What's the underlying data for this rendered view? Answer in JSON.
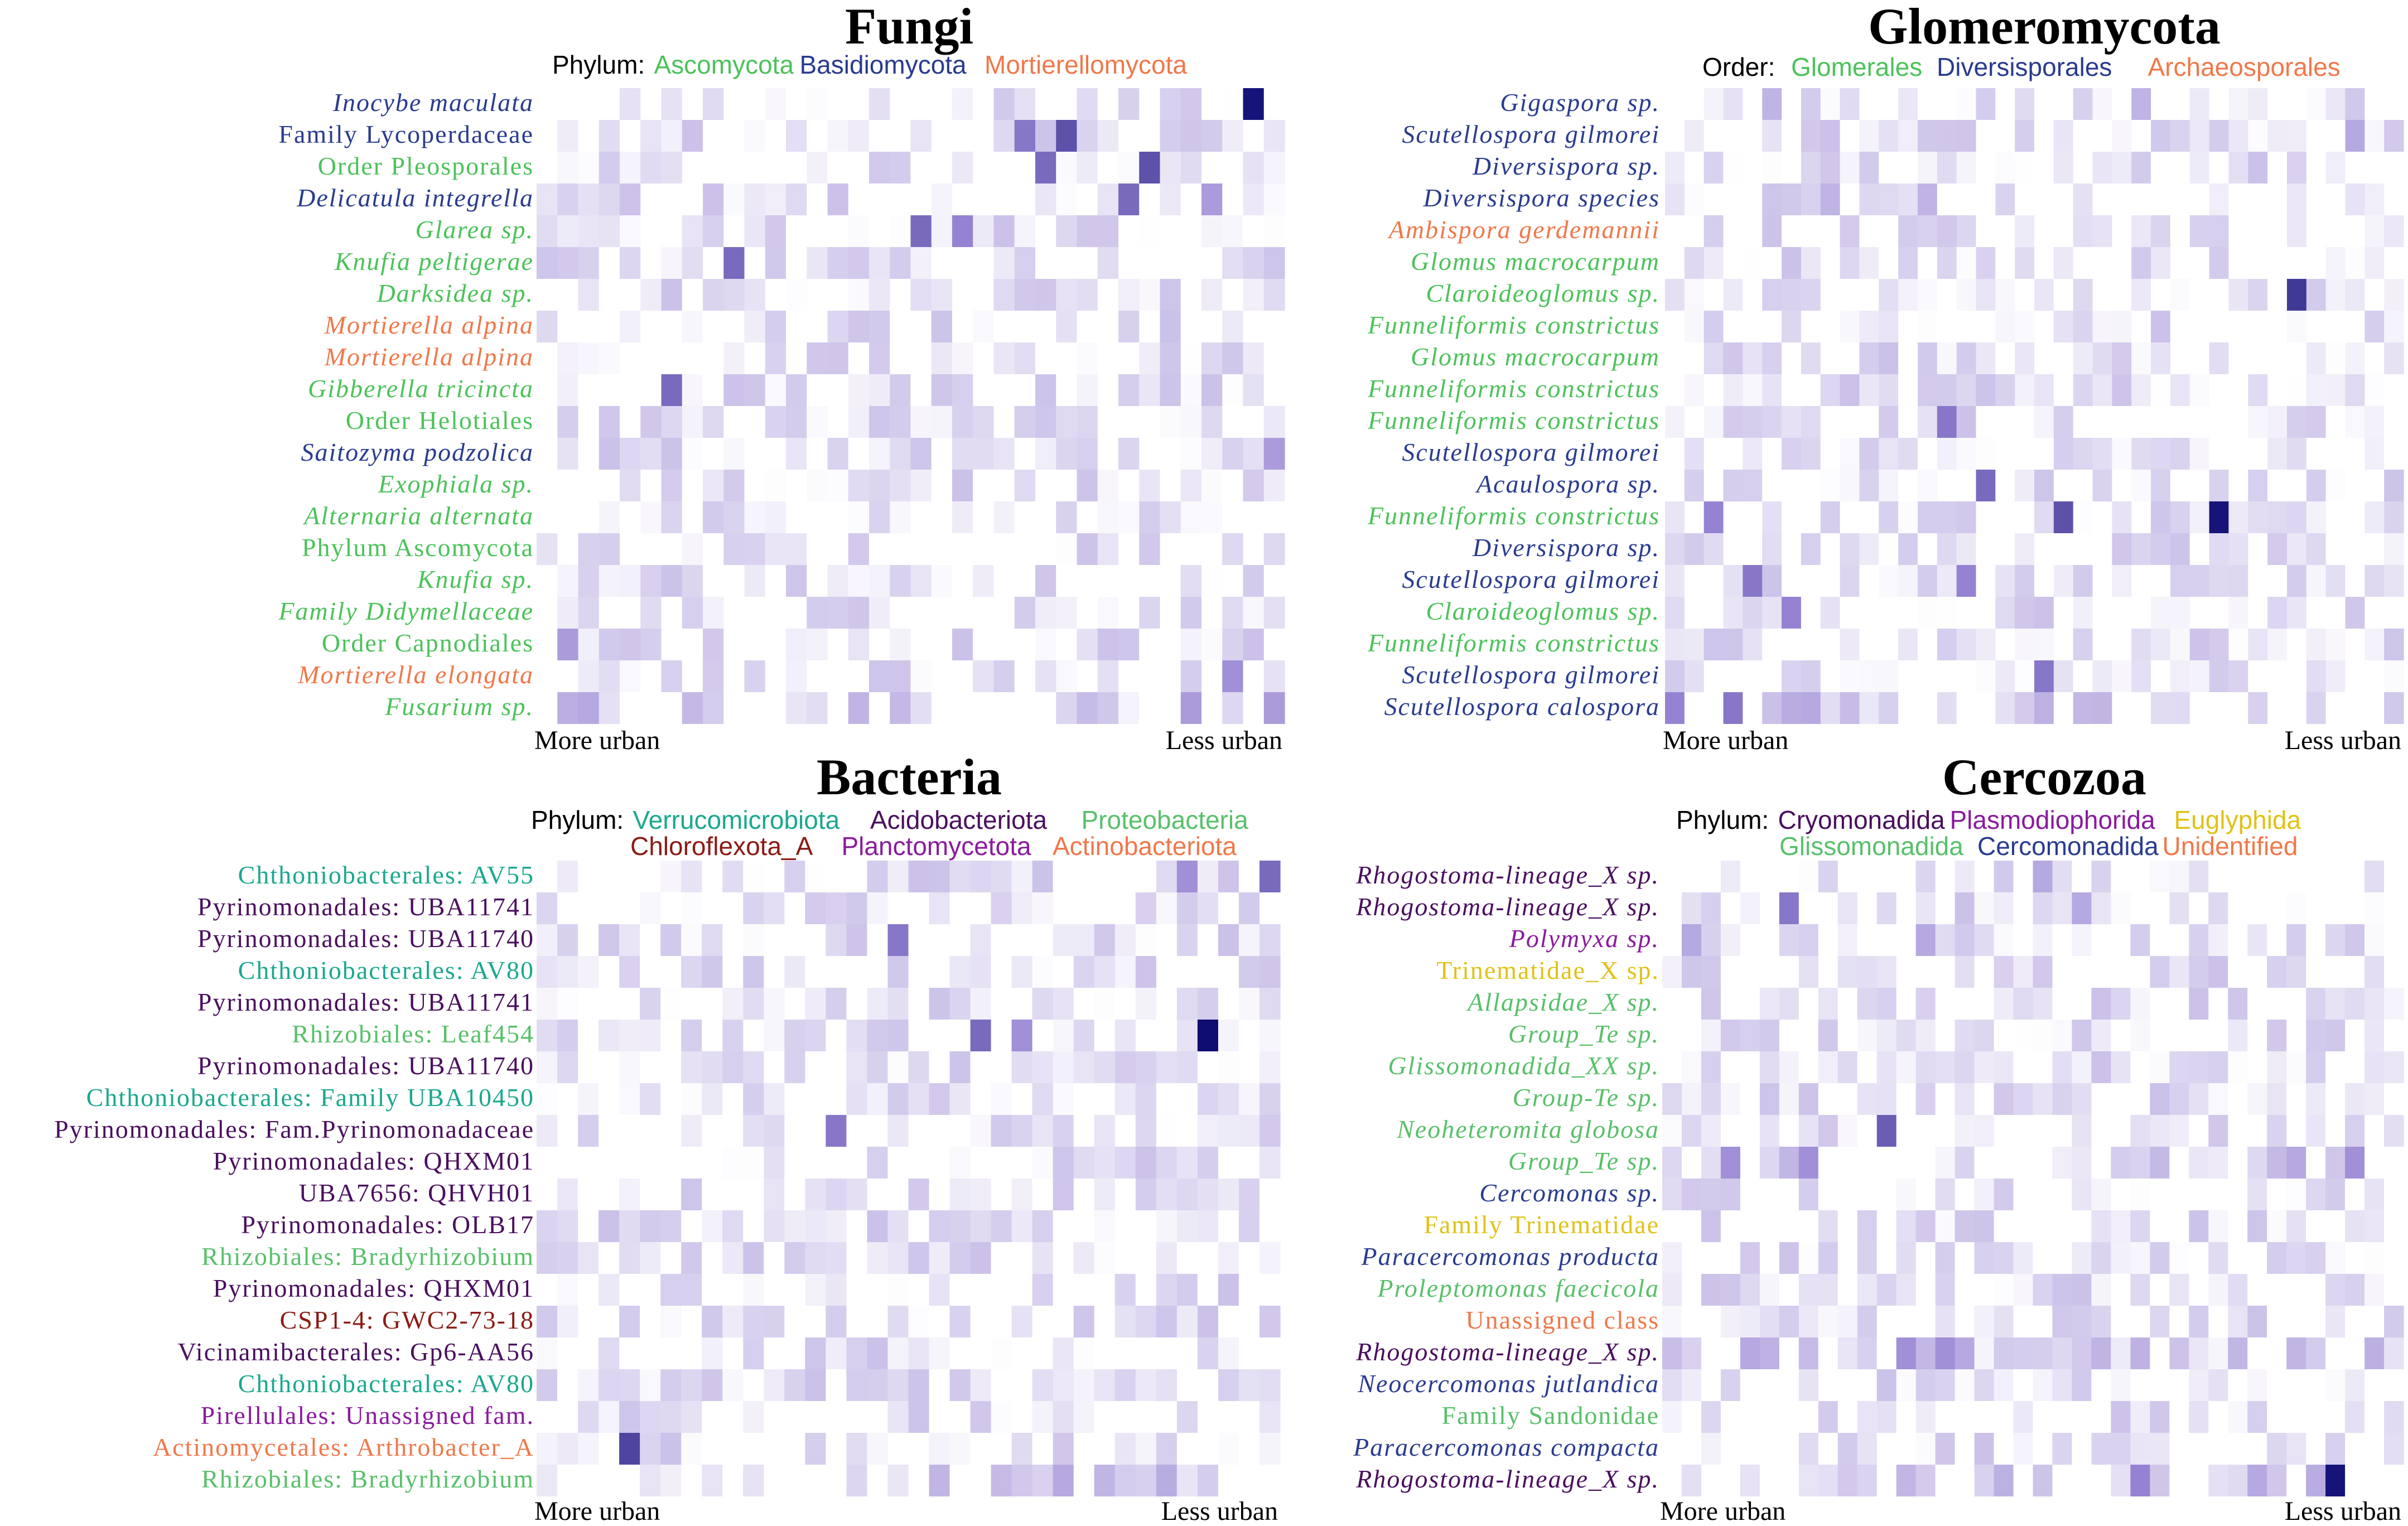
{
  "colors": {
    "heat_low": "#ffffff",
    "heat_high": "#08086e",
    "ascomycota": "#4cc25a",
    "basidiomycota": "#2a3b8f",
    "mortierellomycota": "#f0784a",
    "glomerales": "#4cc25a",
    "diversisporales": "#2a3b8f",
    "archaeosporales": "#f0784a",
    "verrucomicrobiota": "#1aa88f",
    "acidobacteriota": "#4a0f5e",
    "proteobacteria": "#58c06a",
    "chloroflexota": "#8b1a14",
    "planctomycetota": "#8a1b9e",
    "actinobacteriota": "#f0784a",
    "cryomonadida": "#4a0f5e",
    "plasmodiophorida": "#8a1b9e",
    "euglyphida": "#e0c217",
    "glissomonadida": "#58c06a",
    "cercomonadida": "#2a3b8f",
    "unidentified": "#f0784a"
  },
  "chart_data": [
    {
      "type": "heatmap",
      "title": "Fungi",
      "legend_title": "Phylum:",
      "legend": [
        {
          "label": "Ascomycota",
          "color": "#4cc25a"
        },
        {
          "label": "Basidiomycota",
          "color": "#2a3b8f"
        },
        {
          "label": "Mortierellomycota",
          "color": "#f0784a"
        }
      ],
      "x_left_label": "More urban",
      "x_right_label": "Less urban",
      "n_columns": 36,
      "rows": [
        {
          "label": "Inocybe maculata",
          "color": "#2a3b8f",
          "italic": true,
          "hot": [
            [
              34,
              0.95
            ]
          ]
        },
        {
          "label": "Family Lycoperdaceae",
          "color": "#2a3b8f",
          "italic": false,
          "hot": [
            [
              23,
              0.55
            ],
            [
              25,
              0.7
            ]
          ]
        },
        {
          "label": "Order Pleosporales",
          "color": "#4cc25a",
          "italic": false,
          "hot": [
            [
              24,
              0.6
            ],
            [
              29,
              0.7
            ]
          ]
        },
        {
          "label": "Delicatula integrella",
          "color": "#2a3b8f",
          "italic": true,
          "hot": [
            [
              28,
              0.6
            ],
            [
              32,
              0.4
            ]
          ]
        },
        {
          "label": "Glarea sp.",
          "color": "#4cc25a",
          "italic": true,
          "hot": [
            [
              18,
              0.6
            ],
            [
              20,
              0.5
            ]
          ]
        },
        {
          "label": "Knufia peltigerae",
          "color": "#4cc25a",
          "italic": true,
          "hot": [
            [
              9,
              0.6
            ]
          ]
        },
        {
          "label": "Darksidea sp.",
          "color": "#4cc25a",
          "italic": true,
          "hot": []
        },
        {
          "label": "Mortierella alpina",
          "color": "#f0784a",
          "italic": true,
          "hot": []
        },
        {
          "label": "Mortierella alpina",
          "color": "#f0784a",
          "italic": true,
          "hot": []
        },
        {
          "label": "Gibberella tricincta",
          "color": "#4cc25a",
          "italic": true,
          "hot": [
            [
              6,
              0.6
            ]
          ]
        },
        {
          "label": "Order Helotiales",
          "color": "#4cc25a",
          "italic": false,
          "hot": []
        },
        {
          "label": "Saitozyma podzolica",
          "color": "#2a3b8f",
          "italic": true,
          "hot": [
            [
              35,
              0.4
            ]
          ]
        },
        {
          "label": "Exophiala sp.",
          "color": "#4cc25a",
          "italic": true,
          "hot": []
        },
        {
          "label": "Alternaria alternata",
          "color": "#4cc25a",
          "italic": true,
          "hot": []
        },
        {
          "label": "Phylum Ascomycota",
          "color": "#4cc25a",
          "italic": false,
          "hot": []
        },
        {
          "label": "Knufia sp.",
          "color": "#4cc25a",
          "italic": true,
          "hot": []
        },
        {
          "label": "Family Didymellaceae",
          "color": "#4cc25a",
          "italic": true,
          "hot": []
        },
        {
          "label": "Order Capnodiales",
          "color": "#4cc25a",
          "italic": false,
          "hot": [
            [
              1,
              0.4
            ]
          ]
        },
        {
          "label": "Mortierella elongata",
          "color": "#f0784a",
          "italic": true,
          "hot": [
            [
              33,
              0.45
            ]
          ]
        },
        {
          "label": "Fusarium sp.",
          "color": "#4cc25a",
          "italic": true,
          "hot": [
            [
              31,
              0.4
            ],
            [
              35,
              0.4
            ]
          ]
        }
      ]
    },
    {
      "type": "heatmap",
      "title": "Glomeromycota",
      "legend_title": "Order:",
      "legend": [
        {
          "label": "Glomerales",
          "color": "#4cc25a"
        },
        {
          "label": "Diversisporales",
          "color": "#2a3b8f"
        },
        {
          "label": "Archaeosporales",
          "color": "#f0784a"
        }
      ],
      "x_left_label": "More urban",
      "x_right_label": "Less urban",
      "n_columns": 38,
      "rows": [
        {
          "label": "Gigaspora sp.",
          "color": "#2a3b8f",
          "italic": true,
          "hot": [
            [
              5,
              0.3
            ],
            [
              24,
              0.3
            ]
          ]
        },
        {
          "label": "Scutellospora gilmorei",
          "color": "#2a3b8f",
          "italic": true,
          "hot": [
            [
              35,
              0.35
            ]
          ]
        },
        {
          "label": "Diversispora sp.",
          "color": "#2a3b8f",
          "italic": true,
          "hot": []
        },
        {
          "label": "Diversispora species",
          "color": "#2a3b8f",
          "italic": true,
          "hot": [
            [
              8,
              0.3
            ],
            [
              13,
              0.3
            ]
          ]
        },
        {
          "label": "Ambispora gerdemannii",
          "color": "#f0784a",
          "italic": true,
          "hot": []
        },
        {
          "label": "Glomus macrocarpum",
          "color": "#4cc25a",
          "italic": true,
          "hot": []
        },
        {
          "label": "Claroideoglomus sp.",
          "color": "#4cc25a",
          "italic": true,
          "hot": [
            [
              32,
              0.8
            ]
          ]
        },
        {
          "label": "Funneliformis constrictus",
          "color": "#4cc25a",
          "italic": true,
          "hot": []
        },
        {
          "label": "Glomus macrocarpum",
          "color": "#4cc25a",
          "italic": true,
          "hot": []
        },
        {
          "label": "Funneliformis constrictus",
          "color": "#4cc25a",
          "italic": true,
          "hot": []
        },
        {
          "label": "Funneliformis constrictus",
          "color": "#4cc25a",
          "italic": true,
          "hot": [
            [
              14,
              0.55
            ]
          ]
        },
        {
          "label": "Scutellospora gilmorei",
          "color": "#2a3b8f",
          "italic": true,
          "hot": []
        },
        {
          "label": "Acaulospora sp.",
          "color": "#2a3b8f",
          "italic": true,
          "hot": [
            [
              16,
              0.6
            ]
          ]
        },
        {
          "label": "Funneliformis constrictus",
          "color": "#4cc25a",
          "italic": true,
          "hot": [
            [
              2,
              0.5
            ],
            [
              20,
              0.7
            ],
            [
              28,
              0.95
            ]
          ]
        },
        {
          "label": "Diversispora sp.",
          "color": "#2a3b8f",
          "italic": true,
          "hot": []
        },
        {
          "label": "Scutellospora gilmorei",
          "color": "#2a3b8f",
          "italic": true,
          "hot": [
            [
              4,
              0.55
            ],
            [
              15,
              0.5
            ]
          ]
        },
        {
          "label": "Claroideoglomus sp.",
          "color": "#4cc25a",
          "italic": true,
          "hot": [
            [
              6,
              0.5
            ]
          ]
        },
        {
          "label": "Funneliformis constrictus",
          "color": "#4cc25a",
          "italic": true,
          "hot": []
        },
        {
          "label": "Scutellospora gilmorei",
          "color": "#2a3b8f",
          "italic": true,
          "hot": [
            [
              19,
              0.55
            ]
          ]
        },
        {
          "label": "Scutellospora calospora",
          "color": "#2a3b8f",
          "italic": true,
          "hot": [
            [
              0,
              0.5
            ],
            [
              3,
              0.55
            ]
          ]
        }
      ]
    },
    {
      "type": "heatmap",
      "title": "Bacteria",
      "legend_title": "Phylum:",
      "legend": [
        {
          "label": "Verrucomicrobiota",
          "color": "#1aa88f"
        },
        {
          "label": "Acidobacteriota",
          "color": "#4a0f5e"
        },
        {
          "label": "Proteobacteria",
          "color": "#58c06a"
        },
        {
          "label": "Chloroflexota_A",
          "color": "#8b1a14"
        },
        {
          "label": "Planctomycetota",
          "color": "#8a1b9e"
        },
        {
          "label": "Actinobacteriota",
          "color": "#f0784a"
        }
      ],
      "x_left_label": "More urban",
      "x_right_label": "Less urban",
      "n_columns": 36,
      "rows": [
        {
          "label": "Chthoniobacterales: AV55",
          "color": "#1aa88f",
          "italic": false,
          "hot": [
            [
              31,
              0.45
            ],
            [
              35,
              0.6
            ]
          ]
        },
        {
          "label": "Pyrinomonadales: UBA11741",
          "color": "#4a0f5e",
          "italic": false,
          "hot": []
        },
        {
          "label": "Pyrinomonadales: UBA11740",
          "color": "#4a0f5e",
          "italic": false,
          "hot": [
            [
              17,
              0.55
            ]
          ]
        },
        {
          "label": "Chthoniobacterales: AV80",
          "color": "#1aa88f",
          "italic": false,
          "hot": []
        },
        {
          "label": "Pyrinomonadales: UBA11741",
          "color": "#4a0f5e",
          "italic": false,
          "hot": []
        },
        {
          "label": "Rhizobiales: Leaf454",
          "color": "#58c06a",
          "italic": false,
          "hot": [
            [
              21,
              0.6
            ],
            [
              23,
              0.45
            ],
            [
              32,
              0.98
            ]
          ]
        },
        {
          "label": "Pyrinomonadales: UBA11740",
          "color": "#4a0f5e",
          "italic": false,
          "hot": []
        },
        {
          "label": "Chthoniobacterales: Family UBA10450",
          "color": "#1aa88f",
          "italic": false,
          "hot": []
        },
        {
          "label": "Pyrinomonadales: Fam.Pyrinomonadaceae",
          "color": "#4a0f5e",
          "italic": false,
          "hot": [
            [
              14,
              0.55
            ]
          ]
        },
        {
          "label": "Pyrinomonadales: QHXM01",
          "color": "#4a0f5e",
          "italic": false,
          "hot": []
        },
        {
          "label": "UBA7656: QHVH01",
          "color": "#4a0f5e",
          "italic": false,
          "hot": []
        },
        {
          "label": "Pyrinomonadales: OLB17",
          "color": "#4a0f5e",
          "italic": false,
          "hot": []
        },
        {
          "label": "Rhizobiales: Bradyrhizobium",
          "color": "#58c06a",
          "italic": false,
          "hot": []
        },
        {
          "label": "Pyrinomonadales: QHXM01",
          "color": "#4a0f5e",
          "italic": false,
          "hot": []
        },
        {
          "label": "CSP1-4: GWC2-73-18",
          "color": "#8b1a14",
          "italic": false,
          "hot": []
        },
        {
          "label": "Vicinamibacterales: Gp6-AA56",
          "color": "#4a0f5e",
          "italic": false,
          "hot": []
        },
        {
          "label": "Chthoniobacterales: AV80",
          "color": "#1aa88f",
          "italic": false,
          "hot": []
        },
        {
          "label": "Pirellulales: Unassigned fam.",
          "color": "#8a1b9e",
          "italic": false,
          "hot": []
        },
        {
          "label": "Actinomycetales: Arthrobacter_A",
          "color": "#f0784a",
          "italic": false,
          "hot": [
            [
              4,
              0.75
            ]
          ]
        },
        {
          "label": "Rhizobiales: Bradyrhizobium",
          "color": "#58c06a",
          "italic": false,
          "hot": []
        }
      ]
    },
    {
      "type": "heatmap",
      "title": "Cercozoa",
      "legend_title": "Phylum:",
      "legend": [
        {
          "label": "Cryomonadida",
          "color": "#4a0f5e"
        },
        {
          "label": "Plasmodiophorida",
          "color": "#8a1b9e"
        },
        {
          "label": "Euglyphida",
          "color": "#e0c217"
        },
        {
          "label": "Glissomonadida",
          "color": "#58c06a"
        },
        {
          "label": "Cercomonadida",
          "color": "#2a3b8f"
        },
        {
          "label": "Unidentified",
          "color": "#f0784a"
        }
      ],
      "x_left_label": "More urban",
      "x_right_label": "Less urban",
      "n_columns": 38,
      "rows": [
        {
          "label": "Rhogostoma-lineage_X sp.",
          "color": "#4a0f5e",
          "italic": true,
          "hot": [
            [
              19,
              0.35
            ]
          ]
        },
        {
          "label": "Rhogostoma-lineage_X sp.",
          "color": "#4a0f5e",
          "italic": true,
          "hot": [
            [
              6,
              0.55
            ],
            [
              21,
              0.35
            ]
          ]
        },
        {
          "label": "Polymyxa sp.",
          "color": "#8a1b9e",
          "italic": true,
          "hot": [
            [
              1,
              0.35
            ],
            [
              13,
              0.35
            ]
          ]
        },
        {
          "label": "Trinematidae_X sp.",
          "color": "#e0c217",
          "italic": false,
          "hot": []
        },
        {
          "label": "Allapsidae_X sp.",
          "color": "#58c06a",
          "italic": true,
          "hot": []
        },
        {
          "label": "Group_Te sp.",
          "color": "#58c06a",
          "italic": true,
          "hot": []
        },
        {
          "label": "Glissomonadida_XX sp.",
          "color": "#58c06a",
          "italic": true,
          "hot": []
        },
        {
          "label": "Group-Te sp.",
          "color": "#58c06a",
          "italic": true,
          "hot": []
        },
        {
          "label": "Neoheteromita globosa",
          "color": "#58c06a",
          "italic": true,
          "hot": [
            [
              11,
              0.65
            ]
          ]
        },
        {
          "label": "Group_Te sp.",
          "color": "#58c06a",
          "italic": true,
          "hot": [
            [
              3,
              0.45
            ],
            [
              7,
              0.45
            ],
            [
              35,
              0.45
            ]
          ]
        },
        {
          "label": "Cercomonas sp.",
          "color": "#2a3b8f",
          "italic": true,
          "hot": []
        },
        {
          "label": "Family Trinematidae",
          "color": "#e0c217",
          "italic": false,
          "hot": []
        },
        {
          "label": "Paracercomonas producta",
          "color": "#2a3b8f",
          "italic": true,
          "hot": []
        },
        {
          "label": "Proleptomonas faecicola",
          "color": "#58c06a",
          "italic": true,
          "hot": []
        },
        {
          "label": "Unassigned class",
          "color": "#f0784a",
          "italic": false,
          "hot": []
        },
        {
          "label": "Rhogostoma-lineage_X sp.",
          "color": "#4a0f5e",
          "italic": true,
          "hot": [
            [
              12,
              0.45
            ],
            [
              14,
              0.45
            ]
          ]
        },
        {
          "label": "Neocercomonas jutlandica",
          "color": "#2a3b8f",
          "italic": true,
          "hot": []
        },
        {
          "label": "Family Sandonidae",
          "color": "#58c06a",
          "italic": false,
          "hot": []
        },
        {
          "label": "Paracercomonas compacta",
          "color": "#2a3b8f",
          "italic": true,
          "hot": []
        },
        {
          "label": "Rhogostoma-lineage_X sp.",
          "color": "#4a0f5e",
          "italic": true,
          "hot": [
            [
              34,
              0.95
            ],
            [
              24,
              0.5
            ]
          ]
        }
      ]
    }
  ]
}
